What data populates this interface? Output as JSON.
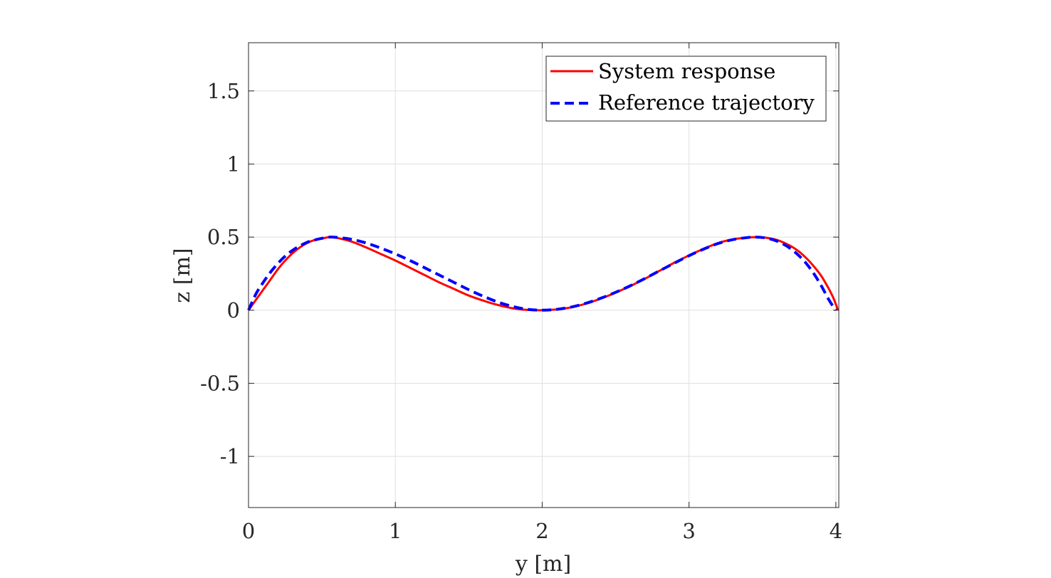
{
  "chart_data": {
    "type": "line",
    "title": "",
    "xlabel": "y [m]",
    "ylabel": "z [m]",
    "xlim": [
      0,
      4.02
    ],
    "ylim": [
      -1.35,
      1.83
    ],
    "xticks": [
      0,
      1,
      2,
      3,
      4
    ],
    "xtick_labels": [
      "0",
      "1",
      "2",
      "3",
      "4"
    ],
    "yticks": [
      -1,
      -0.5,
      0,
      0.5,
      1,
      1.5
    ],
    "ytick_labels": [
      "-1",
      "-0.5",
      "0",
      "0.5",
      "1",
      "1.5"
    ],
    "grid": true,
    "legend_position": "top-right",
    "series": [
      {
        "name": "System response",
        "color": "#ff0000",
        "style": "solid",
        "x": [
          0,
          0.05,
          0.1,
          0.15,
          0.2,
          0.25,
          0.3,
          0.35,
          0.4,
          0.45,
          0.5,
          0.55,
          0.6,
          0.7,
          0.8,
          0.9,
          1.0,
          1.1,
          1.2,
          1.3,
          1.4,
          1.5,
          1.6,
          1.7,
          1.8,
          1.9,
          2.0,
          2.1,
          2.2,
          2.3,
          2.4,
          2.5,
          2.6,
          2.7,
          2.8,
          2.9,
          3.0,
          3.1,
          3.2,
          3.3,
          3.4,
          3.45,
          3.5,
          3.55,
          3.6,
          3.65,
          3.7,
          3.75,
          3.8,
          3.85,
          3.9,
          3.95,
          3.98,
          4.0,
          4.01,
          4.01
        ],
        "y": [
          0,
          0.07,
          0.14,
          0.21,
          0.28,
          0.34,
          0.39,
          0.43,
          0.46,
          0.48,
          0.49,
          0.5,
          0.495,
          0.47,
          0.43,
          0.385,
          0.34,
          0.29,
          0.24,
          0.19,
          0.145,
          0.1,
          0.065,
          0.035,
          0.013,
          0.002,
          0,
          0.005,
          0.02,
          0.045,
          0.08,
          0.12,
          0.165,
          0.215,
          0.27,
          0.325,
          0.375,
          0.42,
          0.46,
          0.485,
          0.497,
          0.5,
          0.498,
          0.492,
          0.48,
          0.46,
          0.435,
          0.4,
          0.355,
          0.3,
          0.235,
          0.15,
          0.09,
          0.04,
          0.01,
          0
        ]
      },
      {
        "name": "Reference trajectory",
        "color": "#0000ff",
        "style": "dashed",
        "x": [
          0,
          0.05,
          0.1,
          0.15,
          0.2,
          0.25,
          0.3,
          0.35,
          0.4,
          0.45,
          0.5,
          0.55,
          0.6,
          0.7,
          0.8,
          0.9,
          1.0,
          1.1,
          1.2,
          1.3,
          1.4,
          1.5,
          1.6,
          1.7,
          1.8,
          1.9,
          2.0,
          2.1,
          2.2,
          2.3,
          2.4,
          2.5,
          2.6,
          2.7,
          2.8,
          2.9,
          3.0,
          3.1,
          3.2,
          3.3,
          3.4,
          3.45,
          3.5,
          3.55,
          3.6,
          3.65,
          3.7,
          3.75,
          3.8,
          3.85,
          3.9,
          3.95,
          3.98,
          4.0
        ],
        "y": [
          0,
          0.11,
          0.19,
          0.26,
          0.32,
          0.37,
          0.41,
          0.44,
          0.465,
          0.48,
          0.492,
          0.5,
          0.498,
          0.485,
          0.46,
          0.425,
          0.385,
          0.34,
          0.29,
          0.24,
          0.19,
          0.14,
          0.095,
          0.055,
          0.025,
          0.006,
          0,
          0.006,
          0.022,
          0.048,
          0.082,
          0.122,
          0.167,
          0.217,
          0.27,
          0.322,
          0.373,
          0.418,
          0.457,
          0.483,
          0.497,
          0.5,
          0.497,
          0.488,
          0.472,
          0.448,
          0.415,
          0.372,
          0.318,
          0.25,
          0.168,
          0.075,
          0.028,
          0
        ]
      }
    ]
  }
}
